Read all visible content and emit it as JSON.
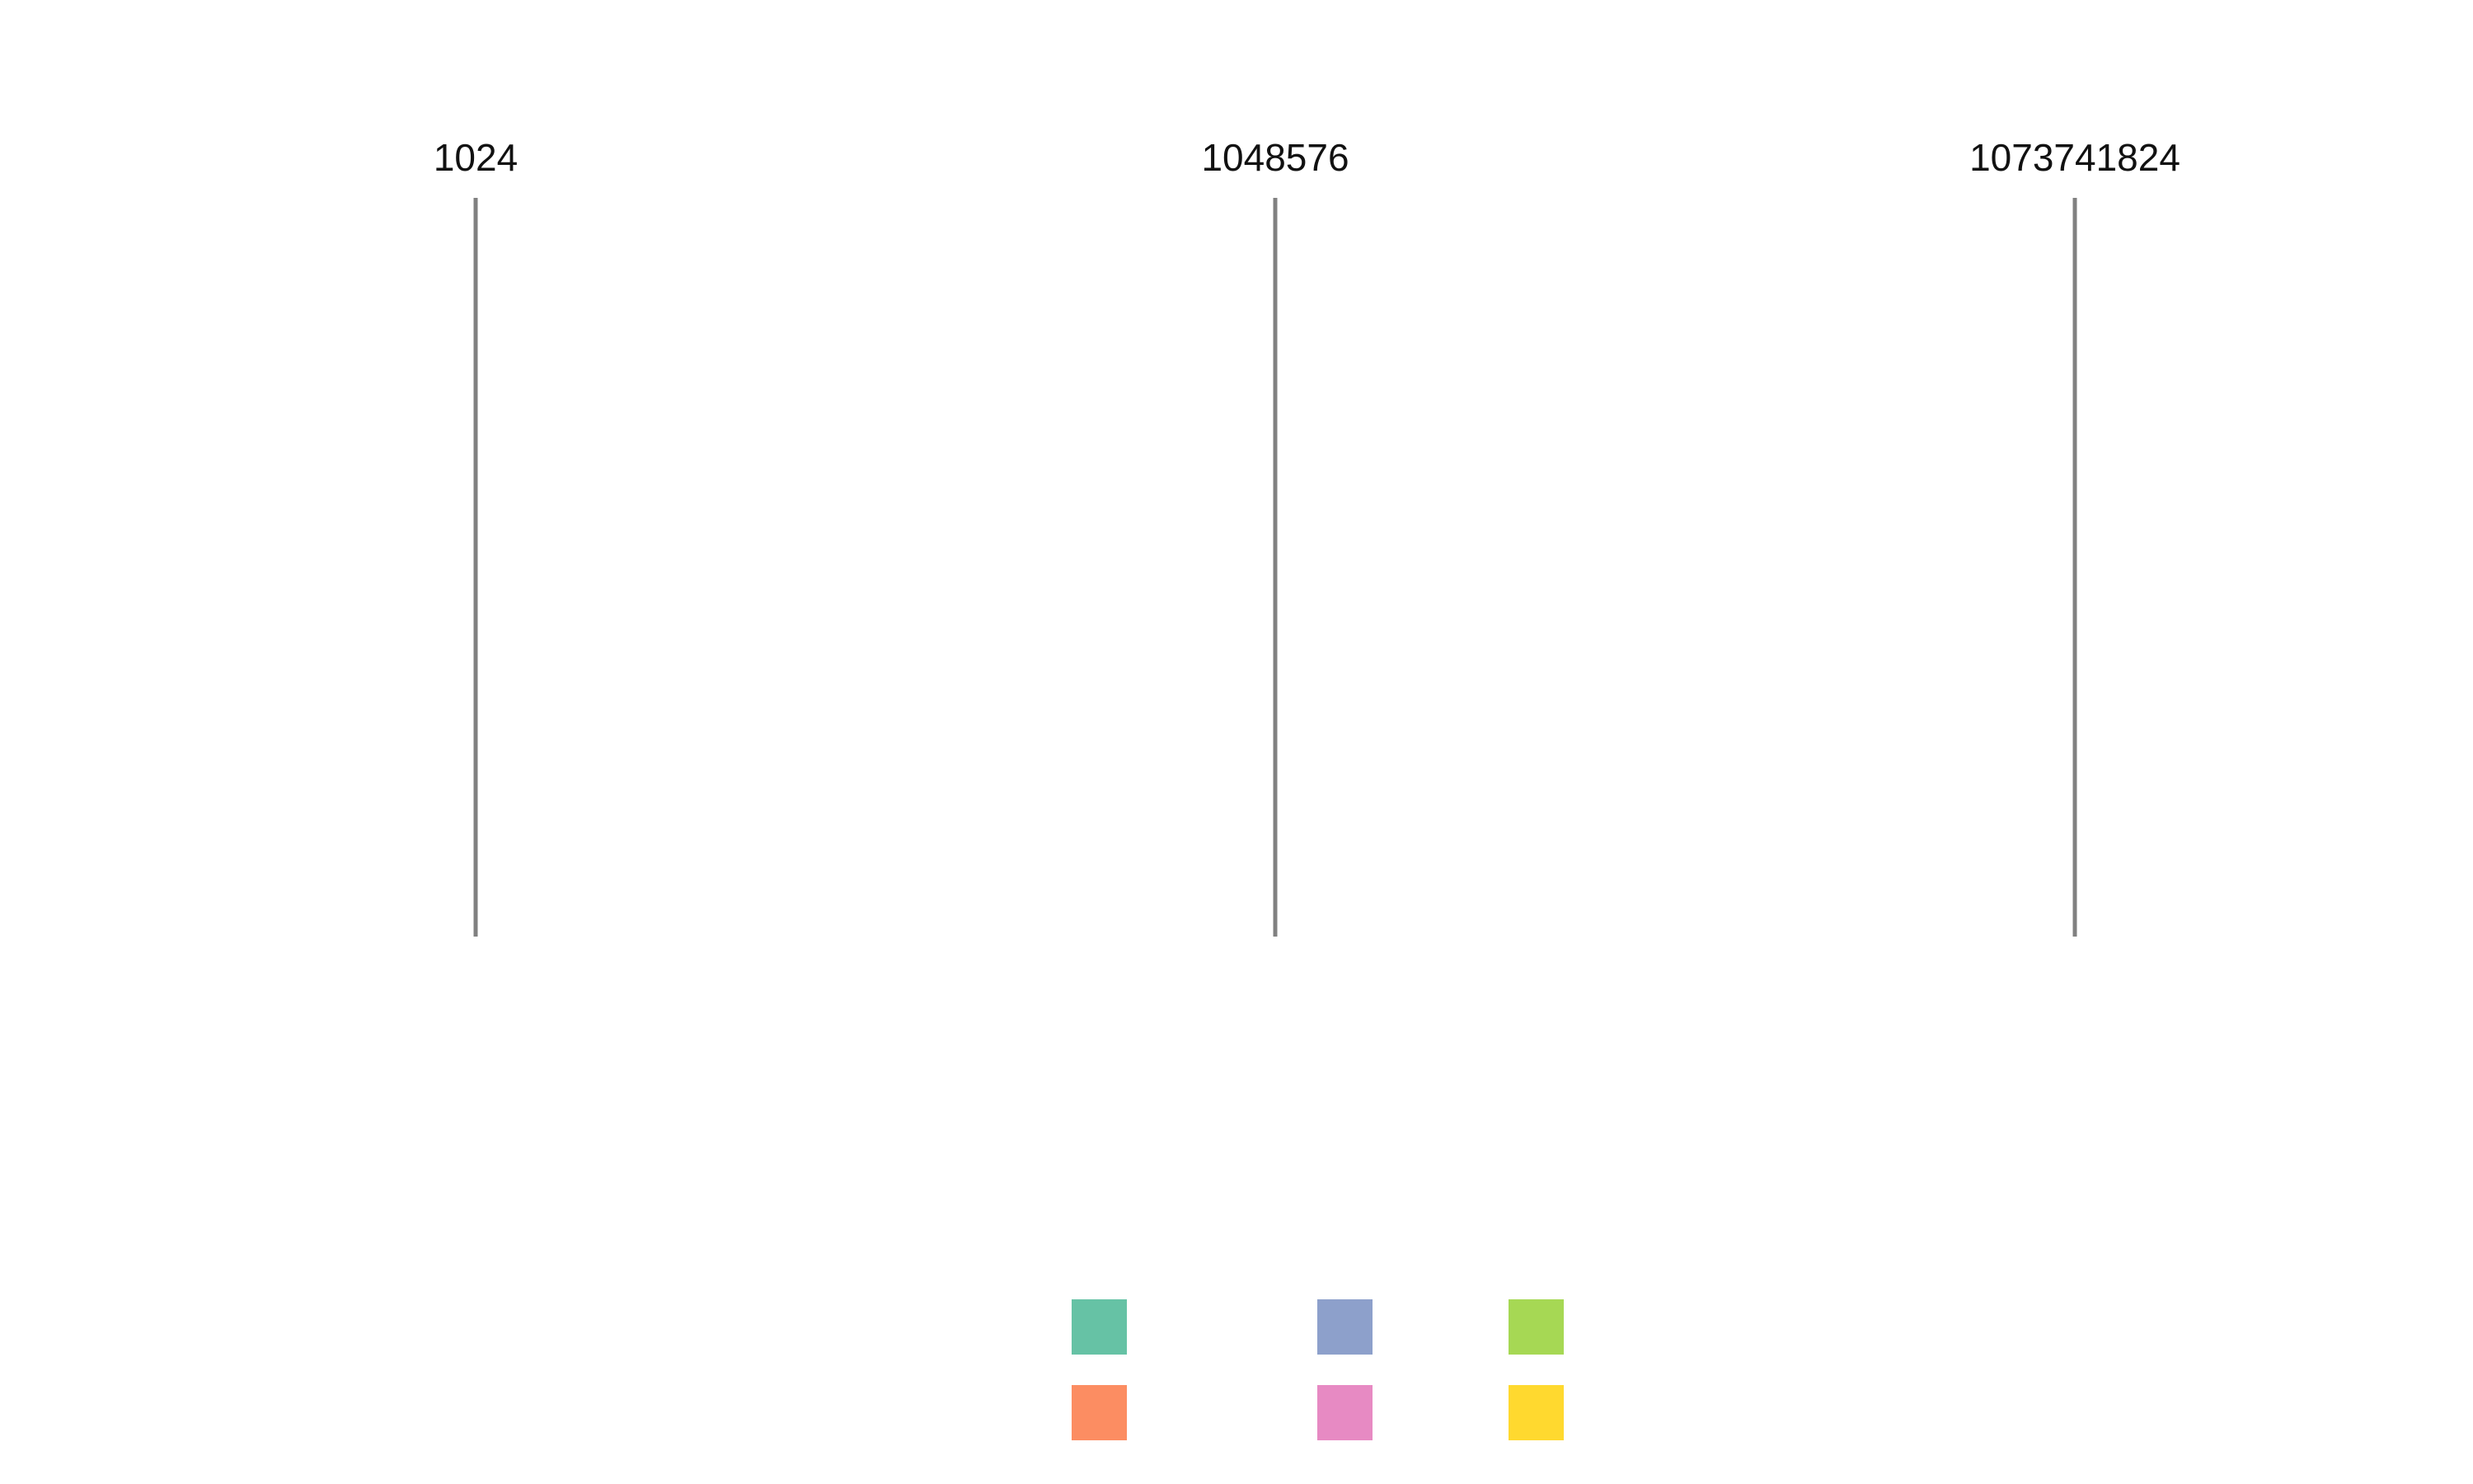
{
  "chart_data": {
    "type": "scatter",
    "title": "",
    "xlabel": "",
    "ylabel": "",
    "x_scale": "log2",
    "x_ticks": [
      {
        "value": 1024,
        "label": "1024"
      },
      {
        "value": 1048576,
        "label": "1048576"
      },
      {
        "value": 1073741824,
        "label": "1073741824"
      }
    ],
    "xlim": [
      512,
      2147483648
    ],
    "grid": "vertical lines at tick positions",
    "series": [],
    "legend": {
      "placement": "bottom-center",
      "entries": [
        {
          "color": "#66c2a5"
        },
        {
          "color": "#fc8d62"
        },
        {
          "color": "#8da0cb"
        },
        {
          "color": "#e78ac3"
        },
        {
          "color": "#a6d854"
        },
        {
          "color": "#ffd92f"
        }
      ]
    }
  }
}
